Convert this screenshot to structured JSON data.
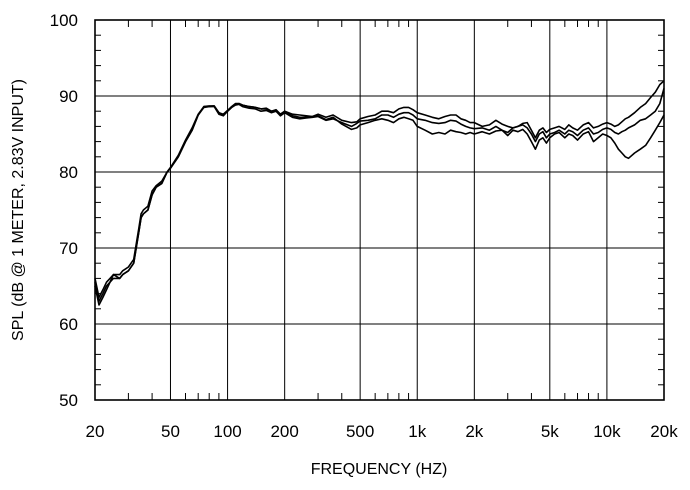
{
  "chart_data": {
    "type": "line",
    "title": "",
    "xlabel": "FREQUENCY  (HZ)",
    "ylabel": "SPL (dB @ 1 METER, 2.83V INPUT)",
    "x_scale": "log",
    "xlim": [
      20,
      20000
    ],
    "ylim": [
      50,
      100
    ],
    "grid": true,
    "x_ticks": [
      {
        "value": 20,
        "label": "20"
      },
      {
        "value": 50,
        "label": "50"
      },
      {
        "value": 100,
        "label": "100"
      },
      {
        "value": 200,
        "label": "200"
      },
      {
        "value": 500,
        "label": "500"
      },
      {
        "value": 1000,
        "label": "1k"
      },
      {
        "value": 2000,
        "label": "2k"
      },
      {
        "value": 5000,
        "label": "5k"
      },
      {
        "value": 10000,
        "label": "10k"
      },
      {
        "value": 20000,
        "label": "20k"
      }
    ],
    "y_ticks": [
      {
        "value": 50,
        "label": "50"
      },
      {
        "value": 60,
        "label": "60"
      },
      {
        "value": 70,
        "label": "70"
      },
      {
        "value": 80,
        "label": "80"
      },
      {
        "value": 90,
        "label": "90"
      },
      {
        "value": 100,
        "label": "100"
      }
    ],
    "series": [
      {
        "x": [
          20,
          21,
          22,
          23,
          24,
          25,
          27,
          28,
          30,
          32,
          34,
          35,
          36,
          38,
          40,
          42,
          45,
          48,
          50,
          55,
          60,
          65,
          70,
          75,
          80,
          85,
          90,
          95,
          100,
          105,
          110,
          115,
          120,
          130,
          140,
          150,
          160,
          170,
          180,
          190,
          200,
          220,
          240,
          260,
          280,
          300,
          330,
          360,
          400,
          450,
          480,
          500,
          550,
          600,
          650,
          700,
          750,
          800,
          850,
          900,
          950,
          1000,
          1100,
          1200,
          1300,
          1400,
          1500,
          1600,
          1700,
          1800,
          1900,
          2000,
          2200,
          2400,
          2600,
          2800,
          3000,
          3200,
          3400,
          3600,
          3800,
          4000,
          4200,
          4400,
          4600,
          4800,
          5000,
          5300,
          5600,
          6000,
          6300,
          6600,
          7000,
          7500,
          8000,
          8500,
          9000,
          9500,
          10000,
          10500,
          11000,
          11500,
          12000,
          12500,
          13000,
          14000,
          15000,
          16000,
          17000,
          18000,
          19000,
          20000
        ],
        "values": [
          65.5,
          63,
          64,
          65,
          65.5,
          66,
          66,
          66.5,
          67,
          68,
          72,
          74,
          74.5,
          75,
          77,
          78,
          78.5,
          80,
          80.5,
          82,
          84,
          85.5,
          87.5,
          88.6,
          88.6,
          88.7,
          87.8,
          87.5,
          88,
          88.5,
          88.9,
          89,
          88.8,
          88.6,
          88.5,
          88.3,
          88.4,
          88,
          88.2,
          87.6,
          88,
          87.6,
          87.5,
          87.4,
          87.3,
          87.6,
          87.2,
          87.5,
          86.8,
          86.5,
          86.6,
          87,
          87.3,
          87.5,
          88,
          88,
          87.8,
          88.3,
          88.5,
          88.5,
          88.2,
          87.8,
          87.5,
          87.2,
          87,
          87.3,
          87.5,
          87.5,
          87,
          86.8,
          86.5,
          86.5,
          86,
          86.2,
          86.8,
          86.3,
          86,
          85.8,
          86,
          86.4,
          86.5,
          85.5,
          84.5,
          85.5,
          85.8,
          85.2,
          85.6,
          85.8,
          86,
          85.6,
          86.2,
          85.8,
          85.5,
          86.2,
          86.5,
          85.8,
          86,
          86.3,
          86.5,
          86.3,
          86,
          86.2,
          86.6,
          87,
          87.2,
          87.8,
          88.5,
          89,
          89.8,
          90.5,
          91.5,
          92
        ]
      },
      {
        "x": [
          20,
          21,
          22,
          23,
          24,
          25,
          27,
          28,
          30,
          32,
          34,
          35,
          36,
          38,
          40,
          42,
          45,
          48,
          50,
          55,
          60,
          65,
          70,
          75,
          80,
          85,
          90,
          95,
          100,
          105,
          110,
          115,
          120,
          130,
          140,
          150,
          160,
          170,
          180,
          190,
          200,
          220,
          240,
          260,
          280,
          300,
          330,
          360,
          400,
          450,
          480,
          500,
          550,
          600,
          650,
          700,
          750,
          800,
          850,
          900,
          950,
          1000,
          1100,
          1200,
          1300,
          1400,
          1500,
          1600,
          1700,
          1800,
          1900,
          2000,
          2200,
          2400,
          2600,
          2800,
          3000,
          3200,
          3400,
          3600,
          3800,
          4000,
          4200,
          4400,
          4600,
          4800,
          5000,
          5300,
          5600,
          6000,
          6300,
          6600,
          7000,
          7500,
          8000,
          8500,
          9000,
          9500,
          10000,
          10500,
          11000,
          11500,
          12000,
          12500,
          13000,
          14000,
          15000,
          16000,
          17000,
          18000,
          19000,
          20000
        ],
        "values": [
          65,
          62.5,
          63.5,
          64.5,
          65.5,
          66.5,
          66,
          66.5,
          67,
          68,
          72,
          74,
          74.5,
          75,
          77,
          78,
          78.5,
          80,
          80.5,
          82,
          84,
          85.5,
          87.5,
          88.5,
          88.6,
          88.6,
          87.6,
          87.4,
          88,
          88.5,
          88.8,
          88.9,
          88.6,
          88.4,
          88.3,
          88,
          88.1,
          87.8,
          88,
          87.4,
          87.8,
          87.2,
          87,
          87.1,
          87.2,
          87.3,
          86.8,
          87,
          86.5,
          86,
          86.4,
          86.7,
          86.8,
          87,
          87.5,
          87.5,
          87.2,
          87.6,
          87.8,
          87.8,
          87.5,
          87,
          86.8,
          86.5,
          86.4,
          86.5,
          86.8,
          86.7,
          86.3,
          86,
          85.8,
          85.7,
          85.8,
          85.5,
          86,
          85.5,
          85.2,
          85.8,
          86,
          86.2,
          85.8,
          85,
          84,
          85,
          85.3,
          84.5,
          85,
          85.2,
          85.5,
          85,
          85.5,
          85.3,
          84.8,
          85.5,
          85.8,
          85,
          85.2,
          85.6,
          85.8,
          85.6,
          85.2,
          85,
          85.3,
          85.5,
          85.8,
          86.2,
          86.8,
          87,
          87.5,
          88,
          89,
          91
        ]
      },
      {
        "x": [
          20,
          21,
          22,
          23,
          24,
          25,
          27,
          28,
          30,
          32,
          34,
          35,
          36,
          38,
          40,
          42,
          45,
          48,
          50,
          55,
          60,
          65,
          70,
          75,
          80,
          85,
          90,
          95,
          100,
          105,
          110,
          115,
          120,
          130,
          140,
          150,
          160,
          170,
          180,
          190,
          200,
          220,
          240,
          260,
          280,
          300,
          330,
          360,
          400,
          450,
          480,
          500,
          550,
          600,
          650,
          700,
          750,
          800,
          850,
          900,
          950,
          1000,
          1100,
          1200,
          1300,
          1400,
          1500,
          1600,
          1700,
          1800,
          1900,
          2000,
          2200,
          2400,
          2600,
          2800,
          3000,
          3200,
          3400,
          3600,
          3800,
          4000,
          4200,
          4400,
          4600,
          4800,
          5000,
          5300,
          5600,
          6000,
          6300,
          6600,
          7000,
          7500,
          8000,
          8500,
          9000,
          9500,
          10000,
          10500,
          11000,
          11500,
          12000,
          12500,
          13000,
          14000,
          15000,
          16000,
          17000,
          18000,
          19000,
          20000
        ],
        "values": [
          66,
          63.5,
          64.5,
          65.5,
          66,
          66.5,
          66.5,
          67,
          67.5,
          68.5,
          72.5,
          74.5,
          75,
          75.5,
          77.5,
          78.2,
          78.8,
          80,
          80.6,
          82.2,
          84.2,
          85.8,
          87.6,
          88.6,
          88.7,
          88.7,
          87.8,
          87.6,
          88.1,
          88.6,
          89,
          89,
          88.8,
          88.6,
          88.5,
          88.3,
          88.3,
          88,
          88.1,
          87.6,
          87.9,
          87.4,
          87.2,
          87.2,
          87.3,
          87.4,
          86.9,
          87.2,
          86.3,
          85.6,
          85.8,
          86.2,
          86.5,
          86.8,
          87,
          86.8,
          86.5,
          87,
          87.2,
          87,
          86.8,
          86,
          85.5,
          85,
          85.2,
          85,
          85.5,
          85.3,
          85.2,
          85,
          85.2,
          85,
          85.3,
          85,
          85.4,
          85.5,
          84.8,
          85.5,
          85.3,
          85.6,
          85,
          84,
          83,
          84.2,
          84.5,
          83.8,
          84.5,
          85,
          85.2,
          84.5,
          85,
          84.8,
          84.2,
          85,
          85.3,
          84,
          84.5,
          85,
          84.8,
          84.5,
          83.8,
          83,
          82.5,
          82,
          81.8,
          82.5,
          83,
          83.5,
          84.5,
          85.5,
          86.5,
          87.5
        ]
      }
    ]
  }
}
